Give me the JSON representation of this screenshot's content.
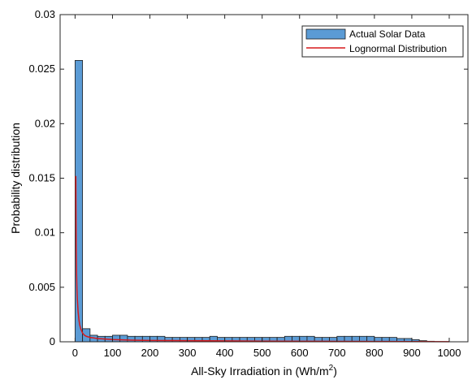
{
  "chart_data": {
    "type": "bar",
    "xlabel": "All-Sky Irradiation in (Wh/m",
    "xlabel_superscript": "2",
    "xlabel_suffix": ")",
    "ylabel": "Probability distribution",
    "xlim": [
      -40,
      1050
    ],
    "ylim": [
      0,
      0.03
    ],
    "xticks": [
      0,
      100,
      200,
      300,
      400,
      500,
      600,
      700,
      800,
      900,
      1000
    ],
    "xtick_labels": [
      "0",
      "100",
      "200",
      "300",
      "400",
      "500",
      "600",
      "700",
      "800",
      "900",
      "1000"
    ],
    "yticks": [
      0,
      0.005,
      0.01,
      0.015,
      0.02,
      0.025,
      0.03
    ],
    "ytick_labels": [
      "0",
      "0.005",
      "0.01",
      "0.015",
      "0.02",
      "0.025",
      "0.03"
    ],
    "grid": false,
    "legend_position": "top-right",
    "colors": {
      "bar_fill": "#5b9bd5",
      "bar_edge": "#1c1c1c",
      "line": "#d7191c"
    },
    "series": [
      {
        "name": "Actual Solar Data",
        "kind": "histogram",
        "bin_width": 20,
        "bin_starts": [
          0,
          20,
          40,
          60,
          80,
          100,
          120,
          140,
          160,
          180,
          200,
          220,
          240,
          260,
          280,
          300,
          320,
          340,
          360,
          380,
          400,
          420,
          440,
          460,
          480,
          500,
          520,
          540,
          560,
          580,
          600,
          620,
          640,
          660,
          680,
          700,
          720,
          740,
          760,
          780,
          800,
          820,
          840,
          860,
          880,
          900,
          920,
          940
        ],
        "values": [
          0.0258,
          0.0012,
          0.0006,
          0.0005,
          0.0005,
          0.0006,
          0.0006,
          0.0005,
          0.0005,
          0.0005,
          0.0005,
          0.0005,
          0.0004,
          0.0004,
          0.0004,
          0.0004,
          0.0004,
          0.0004,
          0.0005,
          0.0004,
          0.0004,
          0.0004,
          0.0004,
          0.0004,
          0.0004,
          0.0004,
          0.0004,
          0.0004,
          0.0005,
          0.0005,
          0.0005,
          0.0005,
          0.0004,
          0.0004,
          0.0004,
          0.0005,
          0.0005,
          0.0005,
          0.0005,
          0.0005,
          0.0004,
          0.0004,
          0.0004,
          0.0003,
          0.0003,
          0.0002,
          0.0001,
          5e-05
        ]
      },
      {
        "name": "Lognormal Distribution",
        "kind": "line",
        "x": [
          2,
          3,
          4,
          5,
          6,
          8,
          10,
          12,
          15,
          20,
          25,
          30,
          40,
          50,
          60,
          80,
          100,
          150,
          200,
          300,
          400,
          500,
          600,
          700,
          800,
          900,
          1000
        ],
        "y": [
          0.0152,
          0.0088,
          0.0062,
          0.0048,
          0.0039,
          0.0028,
          0.0021,
          0.0016,
          0.0012,
          0.0008,
          0.0006,
          0.0005,
          0.0004,
          0.00035,
          0.0003,
          0.00025,
          0.0002,
          0.00015,
          0.00012,
          0.0001,
          8e-05,
          6e-05,
          5e-05,
          4e-05,
          3e-05,
          2e-05,
          1e-05
        ]
      }
    ]
  }
}
